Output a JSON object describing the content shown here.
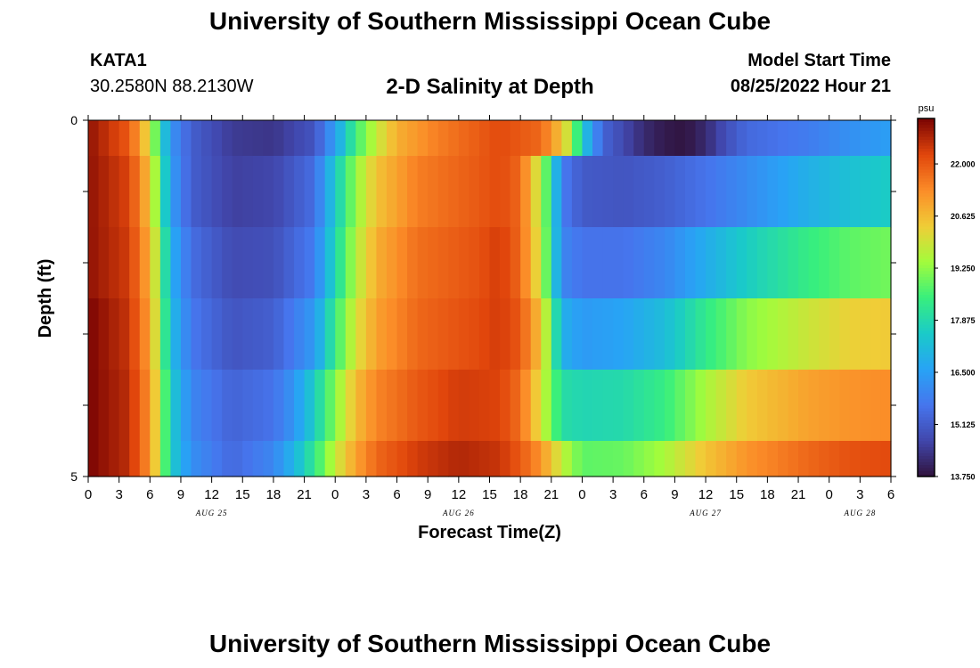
{
  "page": {
    "title": "University of Southern Mississippi Ocean Cube",
    "title_repeat": "University of Southern Mississippi Ocean Cube",
    "station": "KATA1",
    "coords": "30.2580N  88.2130W",
    "subtitle": "2-D Salinity at Depth",
    "model_start_label": "Model Start Time",
    "model_start_value": "08/25/2022 Hour 21"
  },
  "chart_data": {
    "type": "heatmap",
    "title": "2-D Salinity at Depth",
    "xlabel": "Forecast Time(Z)",
    "ylabel": "Depth (ft)",
    "y_range": [
      0,
      5
    ],
    "y_tick_labels": [
      {
        "value": 0,
        "label": "0"
      },
      {
        "value": 5,
        "label": "5"
      }
    ],
    "x_range_hours": [
      0,
      78
    ],
    "x_tick_labels": [
      "0",
      "3",
      "6",
      "9",
      "12",
      "15",
      "18",
      "21",
      "0",
      "3",
      "6",
      "9",
      "12",
      "15",
      "18",
      "21",
      "0",
      "3",
      "6",
      "9",
      "12",
      "15",
      "18",
      "21",
      "0",
      "3",
      "6"
    ],
    "x_tick_step_hours": 3,
    "date_labels": [
      {
        "label": "AUG 25",
        "hour": 12
      },
      {
        "label": "AUG 26",
        "hour": 36
      },
      {
        "label": "AUG 27",
        "hour": 60
      },
      {
        "label": "AUG 28",
        "hour": 75
      }
    ],
    "colorbar": {
      "unit": "psu",
      "min": 13.75,
      "max": 23.2,
      "tick_values": [
        22.0,
        20.625,
        19.25,
        17.875,
        16.5,
        15.125,
        13.75
      ],
      "tick_labels": [
        "22.000",
        "20.625",
        "19.250",
        "17.875",
        "16.500",
        "15.125",
        "13.750"
      ]
    },
    "depth_levels": [
      {
        "depth_ft_top": 0.0,
        "depth_ft_bottom": 0.5,
        "keyframes": [
          [
            0,
            23.0
          ],
          [
            4,
            22.0
          ],
          [
            6,
            20
          ],
          [
            7,
            18.0
          ],
          [
            8,
            16.3
          ],
          [
            10,
            15.2
          ],
          [
            14,
            14.5
          ],
          [
            18,
            14.4
          ],
          [
            22,
            15.0
          ],
          [
            24,
            16.5
          ],
          [
            26,
            18.5
          ],
          [
            28,
            19.8
          ],
          [
            30,
            20.8
          ],
          [
            34,
            21.5
          ],
          [
            40,
            22.2
          ],
          [
            44,
            21.8
          ],
          [
            46,
            20.5
          ],
          [
            47,
            19.5
          ],
          [
            48,
            17.5
          ],
          [
            50,
            15.3
          ],
          [
            54,
            14.2
          ],
          [
            56,
            13.9
          ],
          [
            58,
            13.8
          ],
          [
            60,
            14.2
          ],
          [
            62,
            14.9
          ],
          [
            64,
            15.4
          ],
          [
            70,
            15.8
          ],
          [
            74,
            16.2
          ],
          [
            78,
            16.5
          ]
        ]
      },
      {
        "depth_ft_top": 0.5,
        "depth_ft_bottom": 1.5,
        "keyframes": [
          [
            0,
            23.0
          ],
          [
            4,
            22.3
          ],
          [
            6,
            20.5
          ],
          [
            7,
            18.5
          ],
          [
            8,
            16.5
          ],
          [
            10,
            15.2
          ],
          [
            14,
            14.6
          ],
          [
            18,
            14.7
          ],
          [
            22,
            15.5
          ],
          [
            24,
            17.5
          ],
          [
            26,
            19.3
          ],
          [
            28,
            20.5
          ],
          [
            32,
            21.5
          ],
          [
            38,
            22.0
          ],
          [
            40,
            22.2
          ],
          [
            42,
            21.8
          ],
          [
            44,
            19.6
          ],
          [
            45,
            18.0
          ],
          [
            46,
            15.8
          ],
          [
            48,
            15.1
          ],
          [
            52,
            15.0
          ],
          [
            56,
            15.2
          ],
          [
            60,
            15.6
          ],
          [
            64,
            16.1
          ],
          [
            70,
            16.9
          ],
          [
            74,
            17.3
          ],
          [
            78,
            17.6
          ]
        ]
      },
      {
        "depth_ft_top": 1.5,
        "depth_ft_bottom": 2.5,
        "keyframes": [
          [
            0,
            23.0
          ],
          [
            4,
            22.4
          ],
          [
            6,
            20.8
          ],
          [
            7,
            19.0
          ],
          [
            8,
            16.9
          ],
          [
            10,
            15.5
          ],
          [
            14,
            14.8
          ],
          [
            18,
            14.9
          ],
          [
            22,
            15.8
          ],
          [
            24,
            17.8
          ],
          [
            26,
            19.6
          ],
          [
            28,
            20.8
          ],
          [
            32,
            21.7
          ],
          [
            38,
            22.1
          ],
          [
            40,
            22.4
          ],
          [
            42,
            21.8
          ],
          [
            44,
            19.8
          ],
          [
            45,
            18.0
          ],
          [
            46,
            16.0
          ],
          [
            48,
            15.6
          ],
          [
            52,
            15.6
          ],
          [
            56,
            16.0
          ],
          [
            60,
            16.8
          ],
          [
            64,
            17.6
          ],
          [
            70,
            18.4
          ],
          [
            74,
            18.8
          ],
          [
            78,
            19.0
          ]
        ]
      },
      {
        "depth_ft_top": 2.5,
        "depth_ft_bottom": 3.5,
        "keyframes": [
          [
            0,
            23.2
          ],
          [
            4,
            22.5
          ],
          [
            6,
            21.0
          ],
          [
            7,
            19.2
          ],
          [
            8,
            17.2
          ],
          [
            10,
            15.7
          ],
          [
            14,
            15.0
          ],
          [
            18,
            15.2
          ],
          [
            22,
            16.4
          ],
          [
            24,
            18.4
          ],
          [
            26,
            20.0
          ],
          [
            28,
            21.0
          ],
          [
            32,
            21.8
          ],
          [
            38,
            22.2
          ],
          [
            40,
            22.4
          ],
          [
            42,
            22.0
          ],
          [
            44,
            20.5
          ],
          [
            45,
            18.8
          ],
          [
            46,
            16.9
          ],
          [
            48,
            16.4
          ],
          [
            52,
            16.6
          ],
          [
            56,
            17.2
          ],
          [
            60,
            18.3
          ],
          [
            64,
            19.2
          ],
          [
            70,
            19.9
          ],
          [
            74,
            20.3
          ],
          [
            78,
            20.4
          ]
        ]
      },
      {
        "depth_ft_top": 3.5,
        "depth_ft_bottom": 4.5,
        "keyframes": [
          [
            0,
            23.2
          ],
          [
            4,
            22.6
          ],
          [
            6,
            21.2
          ],
          [
            7,
            19.6
          ],
          [
            8,
            17.6
          ],
          [
            10,
            16.0
          ],
          [
            14,
            15.3
          ],
          [
            18,
            15.6
          ],
          [
            20,
            16.3
          ],
          [
            22,
            17.6
          ],
          [
            24,
            19.2
          ],
          [
            26,
            20.6
          ],
          [
            28,
            21.4
          ],
          [
            32,
            22.0
          ],
          [
            36,
            22.4
          ],
          [
            40,
            22.3
          ],
          [
            42,
            21.7
          ],
          [
            44,
            20.0
          ],
          [
            45,
            19.0
          ],
          [
            46,
            18.0
          ],
          [
            48,
            17.8
          ],
          [
            52,
            17.9
          ],
          [
            56,
            18.4
          ],
          [
            60,
            19.5
          ],
          [
            64,
            20.4
          ],
          [
            70,
            21.0
          ],
          [
            74,
            21.2
          ],
          [
            78,
            21.3
          ]
        ]
      },
      {
        "depth_ft_top": 4.5,
        "depth_ft_bottom": 5.0,
        "keyframes": [
          [
            0,
            23.2
          ],
          [
            4,
            22.6
          ],
          [
            6,
            21.2
          ],
          [
            7,
            19.6
          ],
          [
            8,
            17.6
          ],
          [
            10,
            16.2
          ],
          [
            14,
            15.4
          ],
          [
            18,
            16.0
          ],
          [
            20,
            17.0
          ],
          [
            22,
            18.3
          ],
          [
            24,
            19.8
          ],
          [
            26,
            21.0
          ],
          [
            28,
            21.8
          ],
          [
            32,
            22.4
          ],
          [
            36,
            22.7
          ],
          [
            40,
            22.5
          ],
          [
            42,
            22.0
          ],
          [
            44,
            21.2
          ],
          [
            46,
            19.8
          ],
          [
            48,
            18.8
          ],
          [
            52,
            18.9
          ],
          [
            56,
            19.5
          ],
          [
            60,
            20.5
          ],
          [
            64,
            21.2
          ],
          [
            70,
            21.8
          ],
          [
            74,
            22.1
          ],
          [
            78,
            22.2
          ]
        ]
      }
    ]
  }
}
